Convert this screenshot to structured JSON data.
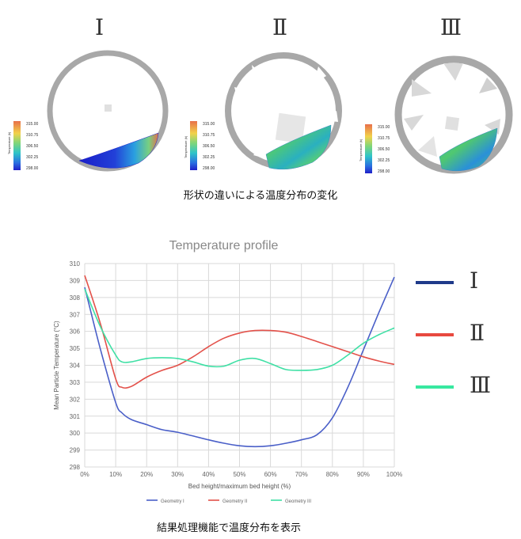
{
  "figure_top": {
    "geometries": [
      {
        "label": "Ⅰ"
      },
      {
        "label": "Ⅱ"
      },
      {
        "label": "Ⅲ"
      }
    ],
    "colorbar": {
      "title": "Temperature (k)",
      "ticks": [
        "315.00",
        "310.75",
        "306.50",
        "302.25",
        "298.00"
      ]
    },
    "caption": "形状の違いによる温度分布の変化"
  },
  "legend_right": [
    "Ⅰ",
    "Ⅱ",
    "Ⅲ"
  ],
  "caption_bottom": "結果処理機能で温度分布を表示",
  "colors": {
    "geometry1": "#4a5fc8",
    "geometry2": "#e3514a",
    "geometry3": "#3fe0a5",
    "big_legend1": "#1f3a8a",
    "big_legend2": "#e8493f",
    "big_legend3": "#38e8a0",
    "grid": "#d9d9d9",
    "ring": "#a8a8a8"
  },
  "chart_data": {
    "type": "line",
    "title": "Temperature profile",
    "xlabel": "Bed height/maximum bed height (%)",
    "ylabel": "Mean Particle Temperature (°C)",
    "xlim": [
      0,
      100
    ],
    "ylim": [
      298,
      310
    ],
    "xticks": [
      "0%",
      "10%",
      "20%",
      "30%",
      "40%",
      "50%",
      "60%",
      "70%",
      "80%",
      "90%",
      "100%"
    ],
    "yticks": [
      "298",
      "299",
      "300",
      "301",
      "302",
      "303",
      "304",
      "305",
      "306",
      "307",
      "308",
      "309",
      "310"
    ],
    "grid": true,
    "legend_position": "bottom",
    "series": [
      {
        "name": "Geometry I",
        "x": [
          0,
          5,
          10,
          12,
          15,
          20,
          25,
          30,
          40,
          45,
          50,
          55,
          60,
          65,
          70,
          75,
          80,
          85,
          90,
          95,
          100
        ],
        "y": [
          308.6,
          305,
          301.8,
          301.2,
          300.8,
          300.5,
          300.2,
          300.05,
          299.6,
          299.4,
          299.25,
          299.2,
          299.25,
          299.4,
          299.6,
          299.9,
          300.9,
          302.7,
          304.9,
          307.1,
          309.2
        ]
      },
      {
        "name": "Geometry II",
        "x": [
          0,
          5,
          10,
          12,
          15,
          20,
          25,
          30,
          35,
          40,
          45,
          50,
          55,
          60,
          65,
          70,
          75,
          80,
          85,
          90,
          95,
          100
        ],
        "y": [
          309.3,
          306.5,
          303.2,
          302.7,
          302.75,
          303.3,
          303.7,
          304,
          304.5,
          305.1,
          305.6,
          305.9,
          306.05,
          306.05,
          305.95,
          305.7,
          305.4,
          305.1,
          304.8,
          304.5,
          304.25,
          304.05
        ]
      },
      {
        "name": "Geometry III",
        "x": [
          0,
          5,
          10,
          12,
          15,
          20,
          25,
          30,
          35,
          40,
          45,
          50,
          55,
          60,
          65,
          70,
          75,
          80,
          85,
          90,
          95,
          100
        ],
        "y": [
          308.5,
          306.3,
          304.6,
          304.2,
          304.2,
          304.4,
          304.45,
          304.4,
          304.2,
          303.95,
          303.95,
          304.3,
          304.4,
          304.1,
          303.75,
          303.7,
          303.75,
          304.0,
          304.6,
          305.3,
          305.8,
          306.2
        ]
      }
    ]
  }
}
